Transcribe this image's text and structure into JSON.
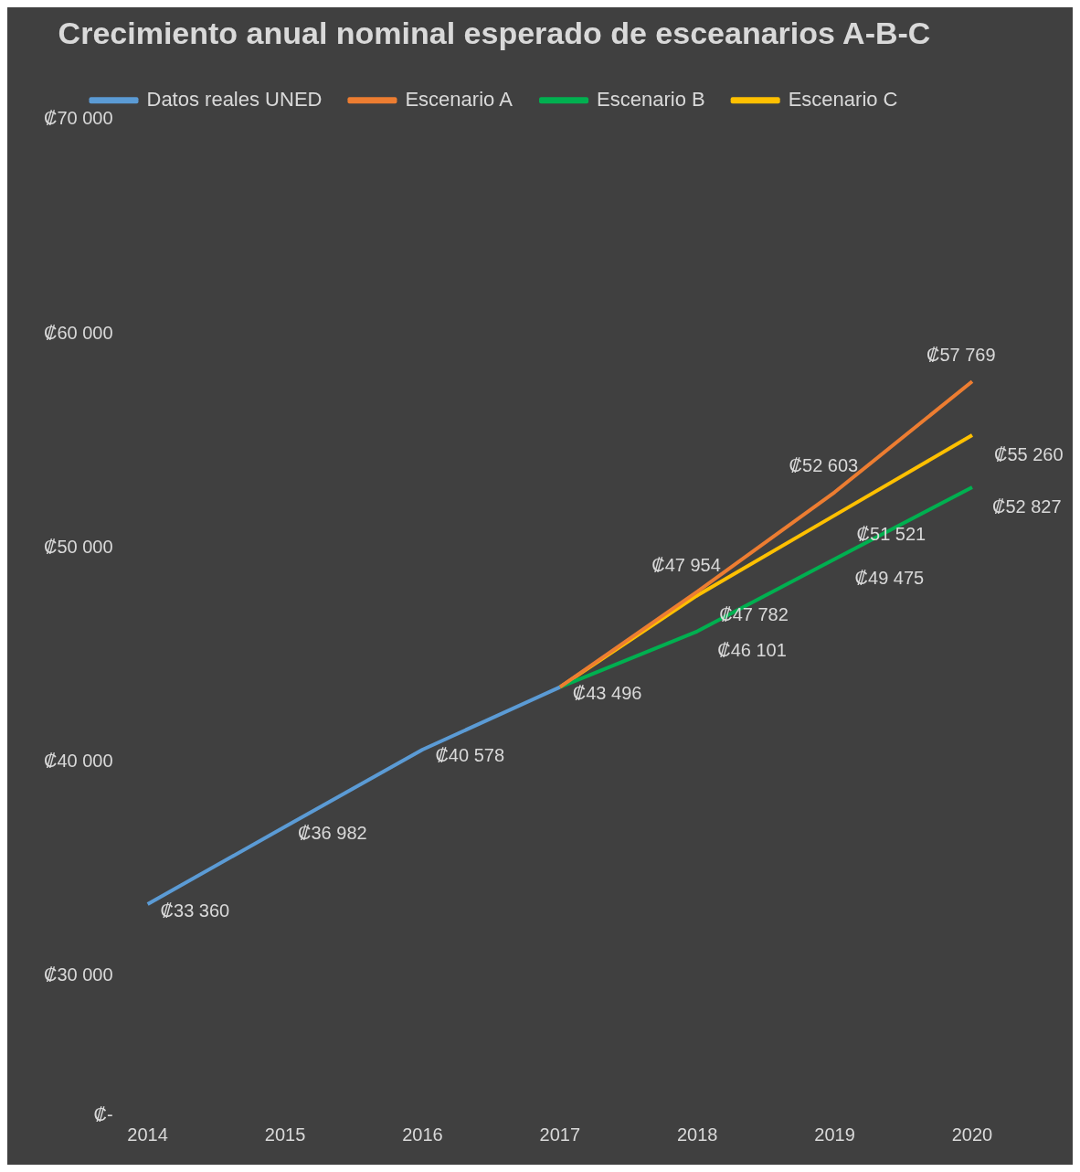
{
  "chart_data": {
    "type": "line",
    "title": "Crecimiento anual nominal esperado de esceanarios A-B-C",
    "categories": [
      "2014",
      "2015",
      "2016",
      "2017",
      "2018",
      "2019",
      "2020"
    ],
    "series": [
      {
        "name": "Datos reales UNED",
        "color": "#5b9bd5",
        "values": [
          33360,
          36982,
          40578,
          43496,
          null,
          null,
          null
        ],
        "value_labels": [
          "₡33 360",
          "₡36 982",
          "₡40 578",
          "₡43 496",
          null,
          null,
          null
        ]
      },
      {
        "name": "Escenario A",
        "color": "#ed7d31",
        "values": [
          null,
          null,
          null,
          43496,
          47954,
          52603,
          57769
        ],
        "value_labels": [
          null,
          null,
          null,
          null,
          "₡47 954",
          "₡52 603",
          "₡57 769"
        ]
      },
      {
        "name": "Escenario B",
        "color": "#00b050",
        "values": [
          null,
          null,
          null,
          43496,
          46101,
          49475,
          52827
        ],
        "value_labels": [
          null,
          null,
          null,
          null,
          "₡46 101",
          "₡49 475",
          "₡52 827"
        ]
      },
      {
        "name": "Escenario C",
        "color": "#ffc000",
        "values": [
          null,
          null,
          null,
          43496,
          47782,
          51521,
          55260
        ],
        "value_labels": [
          null,
          null,
          null,
          null,
          "₡47 782",
          "₡51 521",
          "₡55 260"
        ]
      }
    ],
    "ylim": [
      23500,
      70000
    ],
    "yticks": [
      {
        "value": 23500,
        "label": "₡-"
      },
      {
        "value": 30000,
        "label": "₡30 000"
      },
      {
        "value": 40000,
        "label": "₡40 000"
      },
      {
        "value": 50000,
        "label": "₡50 000"
      },
      {
        "value": 60000,
        "label": "₡60 000"
      },
      {
        "value": 70000,
        "label": "₡70 000"
      }
    ],
    "grid": false,
    "legend": "top",
    "marker": "none",
    "line_style": "solid"
  }
}
